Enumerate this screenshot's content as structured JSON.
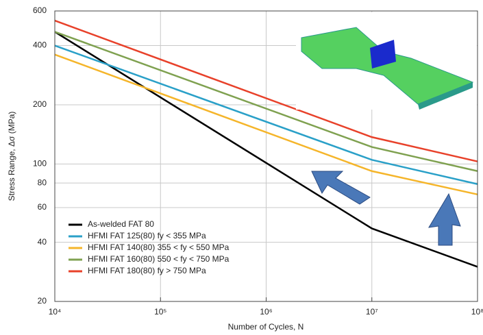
{
  "chart_data": {
    "type": "line",
    "x_label": "Number of Cycles, N",
    "y_label": "Stress Range, Δσ (MPa)",
    "x": [
      10000,
      10000000,
      100000000
    ],
    "series": [
      {
        "name": "As-welded FAT 80",
        "color": "#000000",
        "values": [
          470,
          47,
          30
        ]
      },
      {
        "name": "HFMI FAT 125(80) fy < 355 MPa",
        "color": "#2aa0c8",
        "values": [
          400,
          105,
          79
        ]
      },
      {
        "name": "HFMI FAT 140(80) 355 < fy < 550 MPa",
        "color": "#f5b52a",
        "values": [
          360,
          92,
          70
        ]
      },
      {
        "name": "HFMI FAT 160(80) 550 < fy < 750 MPa",
        "color": "#7fa150",
        "values": [
          470,
          122,
          92
        ]
      },
      {
        "name": "HFMI FAT 180(80) fy > 750 MPa",
        "color": "#e8412a",
        "values": [
          536,
          137,
          103
        ]
      }
    ],
    "xlim": [
      10000,
      100000000
    ],
    "ylim": [
      20,
      600
    ],
    "xticks": [
      {
        "value": 10000,
        "label": "10⁴"
      },
      {
        "value": 100000,
        "label": "10⁵"
      },
      {
        "value": 1000000,
        "label": "10⁶"
      },
      {
        "value": 10000000,
        "label": "10⁷"
      },
      {
        "value": 100000000,
        "label": "10⁸"
      }
    ],
    "yticks": [
      20,
      40,
      60,
      80,
      100,
      200,
      400,
      600
    ],
    "log_x": true,
    "log_y": true,
    "grid": true,
    "legend": "lower-left"
  }
}
